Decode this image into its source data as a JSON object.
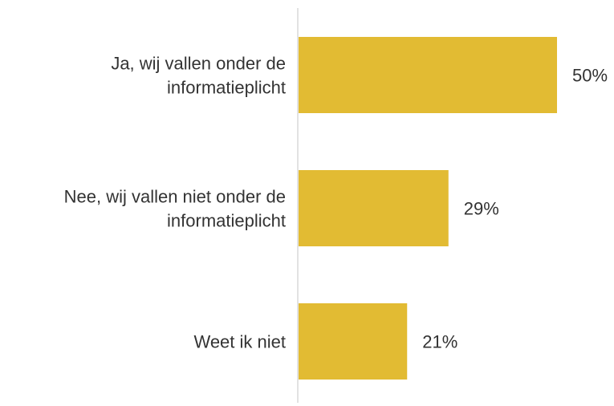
{
  "chart_data": {
    "type": "bar",
    "orientation": "horizontal",
    "categories": [
      [
        "Ja, wij vallen onder de",
        "informatieplicht"
      ],
      [
        "Nee, wij vallen niet onder de",
        "informatieplicht"
      ],
      [
        "Weet ik niet"
      ]
    ],
    "values": [
      50,
      29,
      21
    ],
    "value_labels": [
      "50%",
      "29%",
      "21%"
    ],
    "unit": "%",
    "xlim": [
      0,
      50
    ],
    "grid": false,
    "legend": "none",
    "colors": {
      "bar": "#E2BB33",
      "axis": "#D9D9D9",
      "text": "#333333"
    }
  }
}
